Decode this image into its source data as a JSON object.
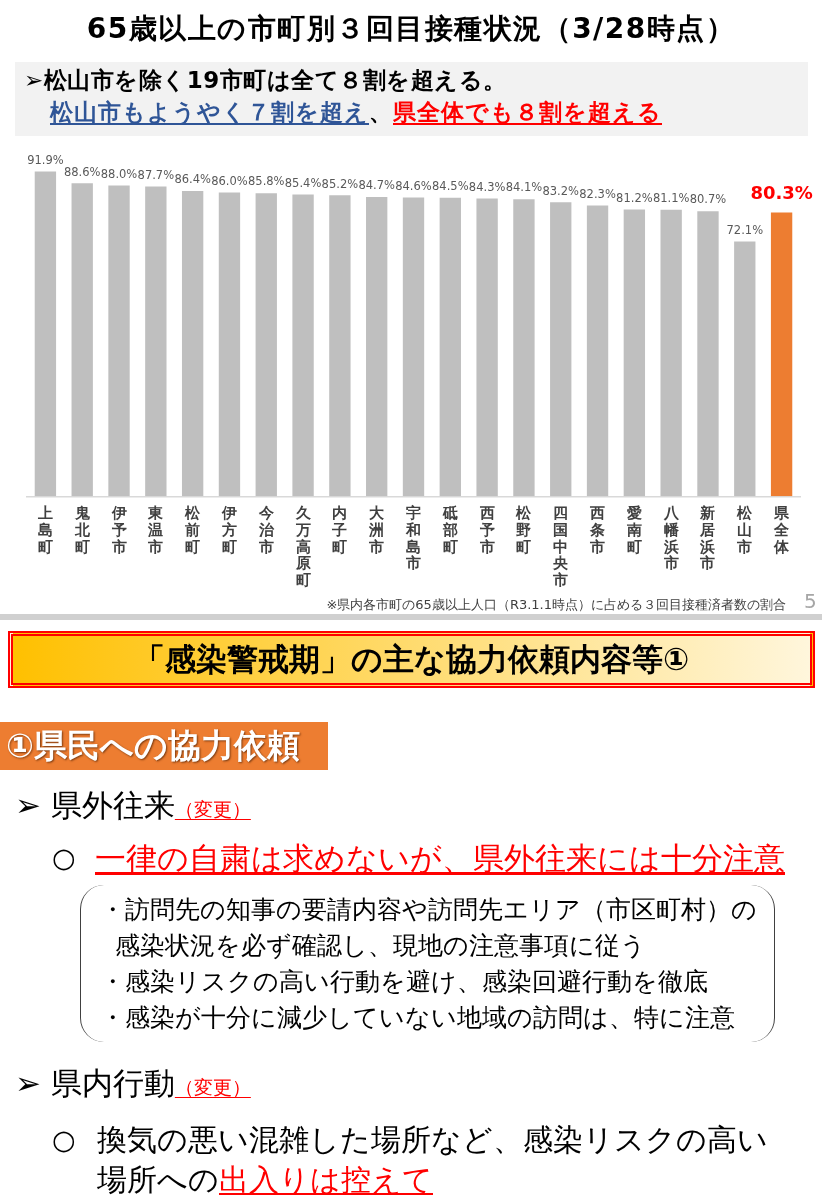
{
  "chart_data": [
    {
      "type": "bar",
      "title": "65歳以上の市町別３回目接種状況（3/28時点）",
      "subtitle": "➢松山市を除く19市町は全て８割を超える。",
      "categories": [
        "上島町",
        "鬼北町",
        "伊予市",
        "東温市",
        "松前町",
        "伊方町",
        "今治市",
        "久万高原町",
        "内子町",
        "大洲市",
        "宇和島市",
        "砥部町",
        "西予市",
        "松野町",
        "四国中央市",
        "西条市",
        "愛南町",
        "八幡浜市",
        "新居浜市",
        "松山市",
        "県全体"
      ],
      "values": [
        91.9,
        88.6,
        88.0,
        87.7,
        86.4,
        86.0,
        85.8,
        85.4,
        85.2,
        84.7,
        84.6,
        84.5,
        84.3,
        84.1,
        83.2,
        82.3,
        81.2,
        81.1,
        80.7,
        72.1,
        80.3
      ],
      "colors": [
        "#bfbfbf",
        "#bfbfbf",
        "#bfbfbf",
        "#bfbfbf",
        "#bfbfbf",
        "#bfbfbf",
        "#bfbfbf",
        "#bfbfbf",
        "#bfbfbf",
        "#bfbfbf",
        "#bfbfbf",
        "#bfbfbf",
        "#bfbfbf",
        "#bfbfbf",
        "#bfbfbf",
        "#bfbfbf",
        "#bfbfbf",
        "#bfbfbf",
        "#bfbfbf",
        "#bfbfbf",
        "#ed7d31"
      ],
      "value_labels": [
        "91.9%",
        "88.6%",
        "88.0%",
        "87.7%",
        "86.4%",
        "86.0%",
        "85.8%",
        "85.4%",
        "85.2%",
        "84.7%",
        "84.6%",
        "84.5%",
        "84.3%",
        "84.1%",
        "83.2%",
        "82.3%",
        "81.2%",
        "81.1%",
        "80.7%",
        "72.1%",
        "80.3%"
      ],
      "tick_labels": "x",
      "annotations": [
        "松山市もようやく７割を超え",
        "、",
        "県全体でも８割を超える",
        "※県内各市町の65歳以上人口（R3.1.1時点）に占める３回目接種済者数の割合",
        "5"
      ]
    },
    {
      "type": "other",
      "title": "「感染警戒期」の主な協力依頼内容等①",
      "annotations": [
        "①県民への協力依頼",
        "➢ 県外往来",
        "（変更）",
        "○",
        "一律の自粛は求めないが、県外往来には十分注意",
        "・訪問先の知事の要請内容や訪問先エリア（市区町村）の感染状況を必ず確認し、現地の注意事項に従う",
        "・感染リスクの高い行動を避け、感染回避行動を徹底",
        "・感染が十分に減少していない地域の訪問は、特に注意",
        "➢ 県内行動",
        "（変更）",
        "○",
        "換気の悪い混雑した場所など、感染リスクの高い",
        "場所への",
        "出入りは控えて"
      ]
    }
  ]
}
